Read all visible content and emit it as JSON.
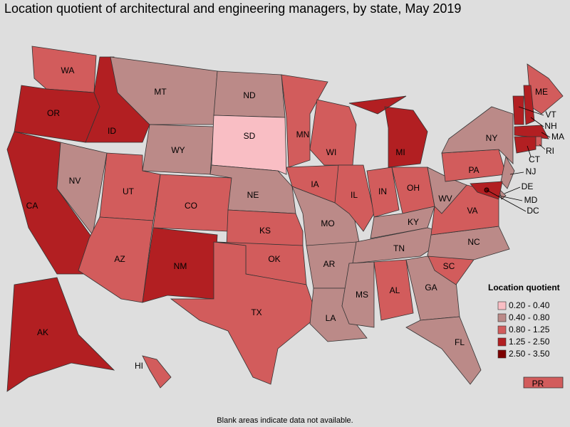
{
  "title": "Location quotient of architectural and engineering managers, by state, May 2019",
  "legend": {
    "title": "Location quotient",
    "items": [
      {
        "label": "0.20 - 0.40",
        "color": "#f9bec4"
      },
      {
        "label": "0.40 - 0.80",
        "color": "#bb8a88"
      },
      {
        "label": "0.80 - 1.25",
        "color": "#d25c5c"
      },
      {
        "label": "1.25 - 2.50",
        "color": "#b21f22"
      },
      {
        "label": "2.50 - 3.50",
        "color": "#7d0000"
      }
    ]
  },
  "states": [
    {
      "label": "WA",
      "class": 2
    },
    {
      "label": "OR",
      "class": 3
    },
    {
      "label": "CA",
      "class": 3
    },
    {
      "label": "NV",
      "class": 1
    },
    {
      "label": "ID",
      "class": 3
    },
    {
      "label": "MT",
      "class": 1
    },
    {
      "label": "WY",
      "class": 1
    },
    {
      "label": "UT",
      "class": 2
    },
    {
      "label": "CO",
      "class": 2
    },
    {
      "label": "AZ",
      "class": 2
    },
    {
      "label": "NM",
      "class": 3
    },
    {
      "label": "ND",
      "class": 1
    },
    {
      "label": "SD",
      "class": 0
    },
    {
      "label": "NE",
      "class": 1
    },
    {
      "label": "KS",
      "class": 2
    },
    {
      "label": "OK",
      "class": 2
    },
    {
      "label": "TX",
      "class": 2
    },
    {
      "label": "MN",
      "class": 2
    },
    {
      "label": "IA",
      "class": 2
    },
    {
      "label": "MO",
      "class": 1
    },
    {
      "label": "AR",
      "class": 1
    },
    {
      "label": "LA",
      "class": 1
    },
    {
      "label": "WI",
      "class": 2
    },
    {
      "label": "IL",
      "class": 2
    },
    {
      "label": "MI",
      "class": 3
    },
    {
      "label": "IN",
      "class": 2
    },
    {
      "label": "OH",
      "class": 2
    },
    {
      "label": "KY",
      "class": 1
    },
    {
      "label": "TN",
      "class": 1
    },
    {
      "label": "MS",
      "class": 1
    },
    {
      "label": "AL",
      "class": 2
    },
    {
      "label": "GA",
      "class": 1
    },
    {
      "label": "FL",
      "class": 1
    },
    {
      "label": "SC",
      "class": 2
    },
    {
      "label": "NC",
      "class": 1
    },
    {
      "label": "VA",
      "class": 2
    },
    {
      "label": "WV",
      "class": 1
    },
    {
      "label": "PA",
      "class": 2
    },
    {
      "label": "NY",
      "class": 1
    },
    {
      "label": "NJ",
      "class": 1
    },
    {
      "label": "DE",
      "class": 1
    },
    {
      "label": "MD",
      "class": 3
    },
    {
      "label": "DC",
      "class": 4
    },
    {
      "label": "ME",
      "class": 2
    },
    {
      "label": "VT",
      "class": 3
    },
    {
      "label": "NH",
      "class": 3
    },
    {
      "label": "MA",
      "class": 3
    },
    {
      "label": "RI",
      "class": 2
    },
    {
      "label": "CT",
      "class": 3
    },
    {
      "label": "AK",
      "class": 3
    },
    {
      "label": "HI",
      "class": 2
    },
    {
      "label": "PR",
      "class": 2
    }
  ],
  "note": "Blank areas indicate data not available."
}
